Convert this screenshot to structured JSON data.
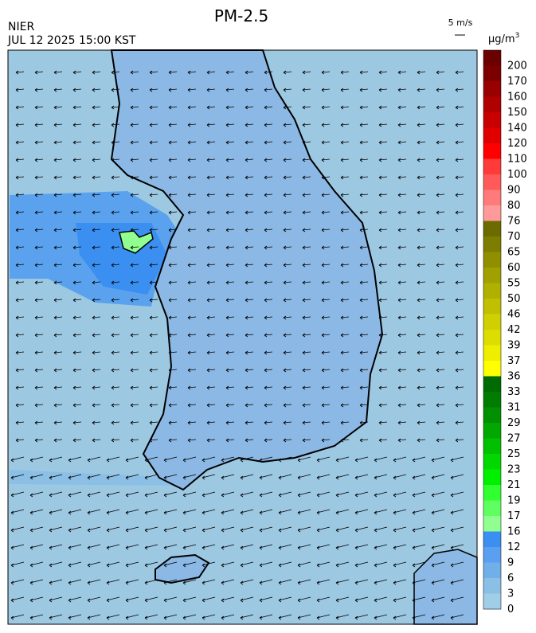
{
  "header": {
    "title": "PM-2.5",
    "agency": "NIER",
    "time": "JUL 12 2025 15:00 KST",
    "wind_scale": "5 m/s",
    "unit": "μg/m",
    "unit_exp": "3"
  },
  "colorbar": {
    "labels": [
      "200",
      "170",
      "160",
      "150",
      "140",
      "120",
      "110",
      "100",
      "90",
      "80",
      "76",
      "70",
      "65",
      "60",
      "55",
      "50",
      "46",
      "42",
      "39",
      "37",
      "36",
      "33",
      "31",
      "29",
      "27",
      "25",
      "23",
      "21",
      "19",
      "17",
      "16",
      "12",
      "9",
      "6",
      "3",
      "0"
    ],
    "colors": [
      "#6b0000",
      "#7d0000",
      "#990000",
      "#b00000",
      "#c80000",
      "#e00000",
      "#ff0000",
      "#ff3a3a",
      "#ff5a5a",
      "#ff7a7a",
      "#ff9a9a",
      "#6b6b00",
      "#7d7d00",
      "#8f8f00",
      "#a0a000",
      "#b0b000",
      "#c0c000",
      "#d0d000",
      "#dddd00",
      "#eeee00",
      "#ffff00",
      "#006b00",
      "#007d00",
      "#009000",
      "#00a800",
      "#00c000",
      "#00d800",
      "#00f000",
      "#30ff30",
      "#60ff60",
      "#90ff90",
      "#3a8ff0",
      "#5a9ff0",
      "#70afe8",
      "#8bbfe5",
      "#a0cde8"
    ]
  }
}
